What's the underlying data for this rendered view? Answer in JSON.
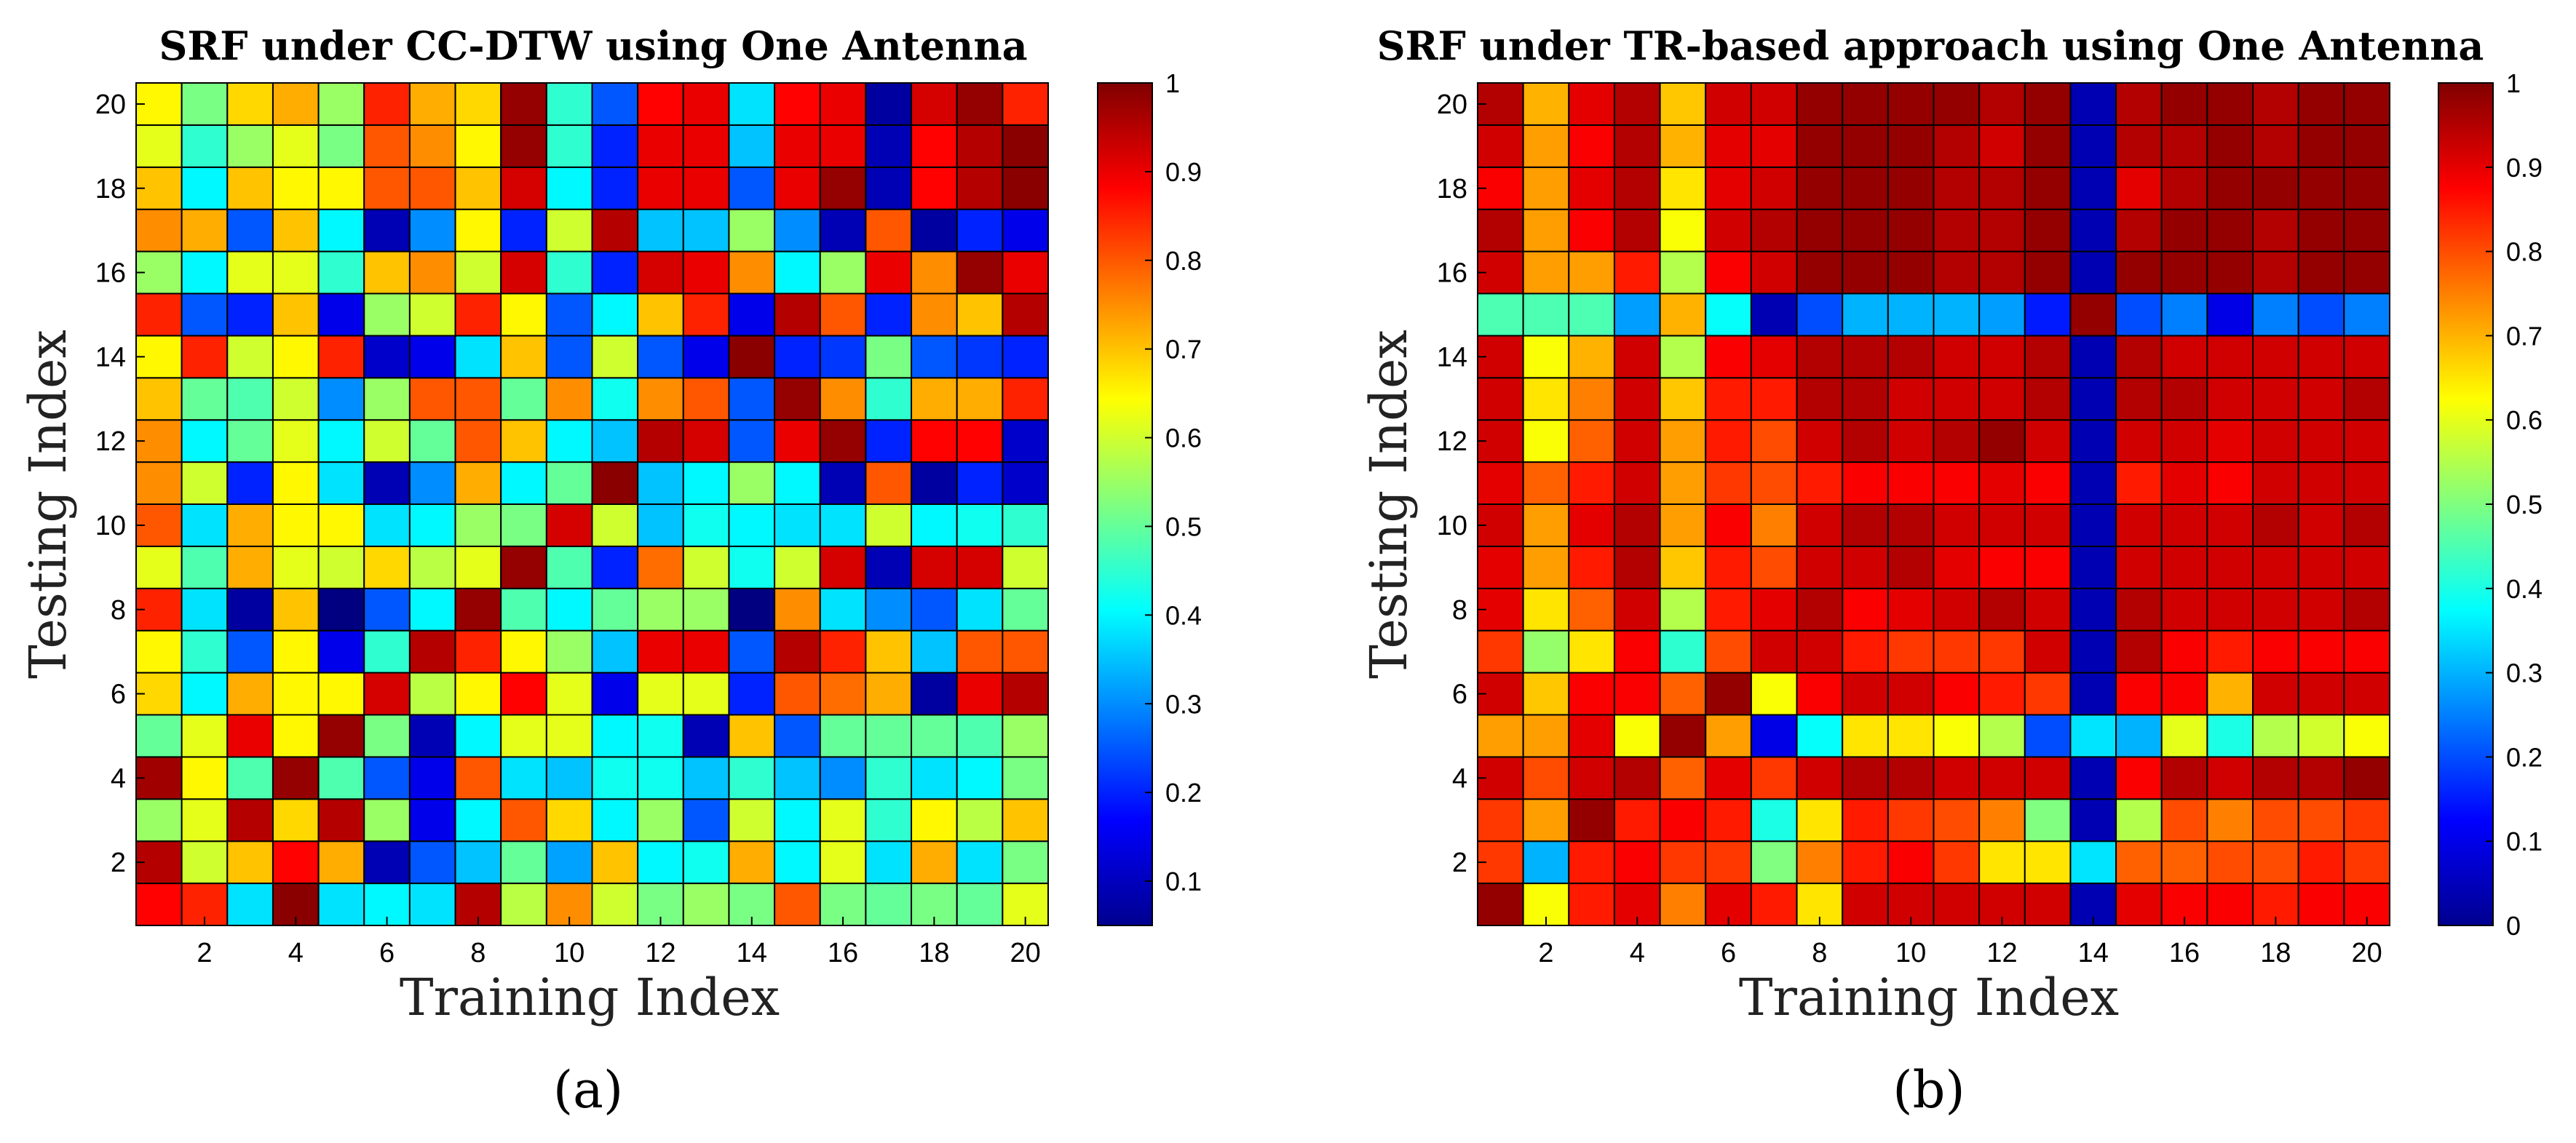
{
  "chart_data": [
    {
      "type": "heatmap",
      "panel_label": "(a)",
      "title": "SRF under CC-DTW using One Antenna",
      "xlabel": "Training Index",
      "ylabel": "Testing Index",
      "x_categories": [
        1,
        2,
        3,
        4,
        5,
        6,
        7,
        8,
        9,
        10,
        11,
        12,
        13,
        14,
        15,
        16,
        17,
        18,
        19,
        20
      ],
      "y_categories": [
        1,
        2,
        3,
        4,
        5,
        6,
        7,
        8,
        9,
        10,
        11,
        12,
        13,
        14,
        15,
        16,
        17,
        18,
        19,
        20
      ],
      "x_ticks": [
        "2",
        "4",
        "6",
        "8",
        "10",
        "12",
        "14",
        "16",
        "18",
        "20"
      ],
      "y_ticks": [
        "2",
        "4",
        "6",
        "8",
        "10",
        "12",
        "14",
        "16",
        "18",
        "20"
      ],
      "colorbar": {
        "min": 0.05,
        "max": 1.0,
        "ticks": [
          "0.1",
          "0.2",
          "0.3",
          "0.4",
          "0.5",
          "0.6",
          "0.7",
          "0.8",
          "0.9",
          "1"
        ]
      },
      "values_rows_bottom_to_top": [
        [
          0.88,
          0.85,
          0.38,
          0.99,
          0.38,
          0.4,
          0.38,
          0.95,
          0.58,
          0.75,
          0.6,
          0.52,
          0.55,
          0.52,
          0.8,
          0.52,
          0.5,
          0.52,
          0.5,
          0.62
        ],
        [
          0.95,
          0.6,
          0.7,
          0.88,
          0.72,
          0.1,
          0.25,
          0.35,
          0.5,
          0.32,
          0.7,
          0.4,
          0.42,
          0.72,
          0.4,
          0.62,
          0.38,
          0.72,
          0.38,
          0.52
        ],
        [
          0.55,
          0.62,
          0.95,
          0.68,
          0.95,
          0.55,
          0.15,
          0.4,
          0.8,
          0.68,
          0.4,
          0.55,
          0.25,
          0.6,
          0.4,
          0.62,
          0.45,
          0.65,
          0.58,
          0.7
        ],
        [
          0.97,
          0.65,
          0.48,
          0.98,
          0.48,
          0.25,
          0.15,
          0.8,
          0.38,
          0.35,
          0.42,
          0.42,
          0.35,
          0.45,
          0.35,
          0.3,
          0.45,
          0.38,
          0.4,
          0.52
        ],
        [
          0.5,
          0.62,
          0.9,
          0.65,
          0.98,
          0.52,
          0.1,
          0.4,
          0.62,
          0.62,
          0.4,
          0.42,
          0.1,
          0.7,
          0.25,
          0.5,
          0.5,
          0.5,
          0.48,
          0.55
        ],
        [
          0.68,
          0.4,
          0.72,
          0.65,
          0.65,
          0.92,
          0.58,
          0.65,
          0.88,
          0.62,
          0.15,
          0.62,
          0.62,
          0.2,
          0.8,
          0.78,
          0.72,
          0.08,
          0.9,
          0.95
        ],
        [
          0.65,
          0.45,
          0.25,
          0.65,
          0.15,
          0.45,
          0.95,
          0.85,
          0.65,
          0.55,
          0.35,
          0.9,
          0.9,
          0.25,
          0.95,
          0.85,
          0.7,
          0.35,
          0.8,
          0.8
        ],
        [
          0.85,
          0.38,
          0.08,
          0.7,
          0.05,
          0.25,
          0.4,
          0.98,
          0.48,
          0.4,
          0.5,
          0.55,
          0.55,
          0.05,
          0.75,
          0.38,
          0.3,
          0.25,
          0.38,
          0.5
        ],
        [
          0.62,
          0.48,
          0.72,
          0.62,
          0.6,
          0.68,
          0.58,
          0.62,
          0.98,
          0.48,
          0.2,
          0.78,
          0.6,
          0.42,
          0.6,
          0.92,
          0.1,
          0.92,
          0.92,
          0.6
        ],
        [
          0.8,
          0.38,
          0.72,
          0.65,
          0.65,
          0.38,
          0.4,
          0.55,
          0.52,
          0.92,
          0.6,
          0.35,
          0.42,
          0.4,
          0.38,
          0.38,
          0.6,
          0.4,
          0.42,
          0.45
        ],
        [
          0.75,
          0.6,
          0.2,
          0.65,
          0.38,
          0.1,
          0.3,
          0.72,
          0.4,
          0.5,
          0.99,
          0.35,
          0.4,
          0.55,
          0.4,
          0.1,
          0.8,
          0.08,
          0.2,
          0.12
        ],
        [
          0.75,
          0.4,
          0.5,
          0.62,
          0.4,
          0.6,
          0.5,
          0.8,
          0.7,
          0.4,
          0.35,
          0.95,
          0.92,
          0.25,
          0.9,
          0.98,
          0.2,
          0.88,
          0.88,
          0.12
        ],
        [
          0.7,
          0.5,
          0.48,
          0.6,
          0.3,
          0.55,
          0.8,
          0.8,
          0.5,
          0.75,
          0.42,
          0.75,
          0.8,
          0.25,
          0.98,
          0.75,
          0.45,
          0.72,
          0.72,
          0.85
        ],
        [
          0.65,
          0.85,
          0.6,
          0.65,
          0.85,
          0.12,
          0.15,
          0.38,
          0.7,
          0.25,
          0.6,
          0.25,
          0.15,
          0.99,
          0.2,
          0.22,
          0.52,
          0.25,
          0.22,
          0.2
        ],
        [
          0.85,
          0.25,
          0.2,
          0.7,
          0.15,
          0.55,
          0.6,
          0.85,
          0.65,
          0.25,
          0.4,
          0.7,
          0.85,
          0.15,
          0.95,
          0.8,
          0.2,
          0.75,
          0.7,
          0.95
        ],
        [
          0.55,
          0.4,
          0.62,
          0.62,
          0.45,
          0.7,
          0.75,
          0.6,
          0.92,
          0.45,
          0.2,
          0.92,
          0.9,
          0.75,
          0.4,
          0.55,
          0.9,
          0.75,
          0.98,
          0.9
        ],
        [
          0.75,
          0.72,
          0.25,
          0.7,
          0.4,
          0.1,
          0.3,
          0.65,
          0.2,
          0.6,
          0.95,
          0.35,
          0.35,
          0.55,
          0.3,
          0.1,
          0.8,
          0.08,
          0.2,
          0.15
        ],
        [
          0.7,
          0.4,
          0.7,
          0.65,
          0.65,
          0.8,
          0.8,
          0.7,
          0.92,
          0.4,
          0.2,
          0.9,
          0.9,
          0.25,
          0.9,
          0.98,
          0.1,
          0.88,
          0.95,
          0.99
        ],
        [
          0.62,
          0.45,
          0.55,
          0.62,
          0.52,
          0.8,
          0.75,
          0.65,
          0.98,
          0.45,
          0.2,
          0.9,
          0.9,
          0.35,
          0.9,
          0.9,
          0.1,
          0.88,
          0.95,
          0.99
        ],
        [
          0.65,
          0.52,
          0.68,
          0.72,
          0.55,
          0.85,
          0.72,
          0.68,
          0.98,
          0.45,
          0.25,
          0.88,
          0.9,
          0.38,
          0.88,
          0.9,
          0.08,
          0.92,
          0.98,
          0.85
        ]
      ]
    },
    {
      "type": "heatmap",
      "panel_label": "(b)",
      "title": "SRF under TR-based approach using One Antenna",
      "xlabel": "Training Index",
      "ylabel": "Testing Index",
      "x_categories": [
        1,
        2,
        3,
        4,
        5,
        6,
        7,
        8,
        9,
        10,
        11,
        12,
        13,
        14,
        15,
        16,
        17,
        18,
        19,
        20
      ],
      "y_categories": [
        1,
        2,
        3,
        4,
        5,
        6,
        7,
        8,
        9,
        10,
        11,
        12,
        13,
        14,
        15,
        16,
        17,
        18,
        19,
        20
      ],
      "x_ticks": [
        "2",
        "4",
        "6",
        "8",
        "10",
        "12",
        "14",
        "16",
        "18",
        "20"
      ],
      "y_ticks": [
        "2",
        "4",
        "6",
        "8",
        "10",
        "12",
        "14",
        "16",
        "18",
        "20"
      ],
      "colorbar": {
        "min": 0,
        "max": 1.0,
        "ticks": [
          "0",
          "0.1",
          "0.2",
          "0.3",
          "0.4",
          "0.5",
          "0.6",
          "0.7",
          "0.8",
          "0.9",
          "1"
        ]
      },
      "values_rows_bottom_to_top": [
        [
          0.98,
          0.62,
          0.85,
          0.9,
          0.75,
          0.9,
          0.85,
          0.65,
          0.92,
          0.92,
          0.92,
          0.92,
          0.92,
          0.05,
          0.9,
          0.88,
          0.88,
          0.85,
          0.88,
          0.88
        ],
        [
          0.82,
          0.3,
          0.85,
          0.88,
          0.82,
          0.82,
          0.5,
          0.75,
          0.85,
          0.88,
          0.82,
          0.65,
          0.65,
          0.35,
          0.78,
          0.78,
          0.8,
          0.8,
          0.85,
          0.82
        ],
        [
          0.82,
          0.72,
          0.98,
          0.85,
          0.88,
          0.85,
          0.4,
          0.65,
          0.85,
          0.82,
          0.8,
          0.75,
          0.5,
          0.05,
          0.55,
          0.8,
          0.75,
          0.8,
          0.8,
          0.82
        ],
        [
          0.92,
          0.8,
          0.92,
          0.95,
          0.78,
          0.9,
          0.82,
          0.92,
          0.95,
          0.95,
          0.92,
          0.92,
          0.92,
          0.05,
          0.88,
          0.95,
          0.92,
          0.95,
          0.95,
          0.98
        ],
        [
          0.72,
          0.72,
          0.9,
          0.62,
          0.98,
          0.72,
          0.1,
          0.38,
          0.65,
          0.65,
          0.62,
          0.55,
          0.2,
          0.35,
          0.3,
          0.6,
          0.4,
          0.55,
          0.58,
          0.62
        ],
        [
          0.92,
          0.68,
          0.88,
          0.88,
          0.78,
          0.98,
          0.62,
          0.88,
          0.92,
          0.92,
          0.88,
          0.85,
          0.82,
          0.05,
          0.88,
          0.88,
          0.7,
          0.92,
          0.92,
          0.92
        ],
        [
          0.82,
          0.52,
          0.65,
          0.88,
          0.42,
          0.8,
          0.92,
          0.92,
          0.85,
          0.82,
          0.82,
          0.82,
          0.92,
          0.05,
          0.95,
          0.88,
          0.85,
          0.88,
          0.88,
          0.88
        ],
        [
          0.9,
          0.65,
          0.78,
          0.92,
          0.55,
          0.85,
          0.9,
          0.95,
          0.88,
          0.9,
          0.92,
          0.95,
          0.92,
          0.05,
          0.95,
          0.92,
          0.92,
          0.92,
          0.92,
          0.95
        ],
        [
          0.9,
          0.72,
          0.85,
          0.95,
          0.68,
          0.85,
          0.8,
          0.92,
          0.92,
          0.95,
          0.9,
          0.88,
          0.88,
          0.05,
          0.92,
          0.92,
          0.92,
          0.92,
          0.92,
          0.92
        ],
        [
          0.92,
          0.72,
          0.9,
          0.95,
          0.72,
          0.88,
          0.75,
          0.92,
          0.95,
          0.95,
          0.92,
          0.92,
          0.92,
          0.05,
          0.92,
          0.92,
          0.92,
          0.95,
          0.92,
          0.95
        ],
        [
          0.9,
          0.78,
          0.85,
          0.92,
          0.72,
          0.82,
          0.8,
          0.85,
          0.88,
          0.88,
          0.88,
          0.9,
          0.88,
          0.05,
          0.85,
          0.9,
          0.88,
          0.92,
          0.92,
          0.92
        ],
        [
          0.92,
          0.62,
          0.78,
          0.92,
          0.72,
          0.85,
          0.8,
          0.92,
          0.95,
          0.92,
          0.95,
          0.98,
          0.92,
          0.05,
          0.92,
          0.92,
          0.9,
          0.92,
          0.92,
          0.92
        ],
        [
          0.92,
          0.65,
          0.75,
          0.92,
          0.68,
          0.85,
          0.85,
          0.95,
          0.95,
          0.92,
          0.92,
          0.92,
          0.95,
          0.05,
          0.95,
          0.95,
          0.92,
          0.92,
          0.92,
          0.95
        ],
        [
          0.92,
          0.62,
          0.7,
          0.92,
          0.55,
          0.88,
          0.9,
          0.95,
          0.95,
          0.95,
          0.92,
          0.92,
          0.95,
          0.05,
          0.95,
          0.92,
          0.92,
          0.92,
          0.92,
          0.92
        ],
        [
          0.45,
          0.45,
          0.45,
          0.28,
          0.7,
          0.38,
          0.05,
          0.2,
          0.3,
          0.3,
          0.3,
          0.28,
          0.15,
          0.98,
          0.2,
          0.25,
          0.1,
          0.25,
          0.2,
          0.25
        ],
        [
          0.92,
          0.72,
          0.72,
          0.85,
          0.55,
          0.88,
          0.92,
          0.98,
          0.98,
          0.98,
          0.95,
          0.95,
          0.98,
          0.05,
          0.98,
          0.98,
          0.98,
          0.95,
          0.98,
          0.98
        ],
        [
          0.95,
          0.72,
          0.88,
          0.95,
          0.62,
          0.92,
          0.95,
          0.98,
          0.98,
          0.98,
          0.95,
          0.95,
          0.98,
          0.05,
          0.95,
          0.98,
          0.98,
          0.95,
          0.98,
          0.98
        ],
        [
          0.88,
          0.72,
          0.9,
          0.95,
          0.65,
          0.9,
          0.92,
          0.98,
          0.98,
          0.98,
          0.95,
          0.95,
          0.98,
          0.05,
          0.9,
          0.95,
          0.98,
          0.98,
          0.98,
          0.98
        ],
        [
          0.92,
          0.72,
          0.88,
          0.95,
          0.7,
          0.9,
          0.9,
          0.98,
          0.98,
          0.98,
          0.95,
          0.92,
          0.98,
          0.05,
          0.95,
          0.95,
          0.98,
          0.95,
          0.98,
          0.98
        ],
        [
          0.95,
          0.7,
          0.9,
          0.95,
          0.68,
          0.92,
          0.92,
          0.98,
          0.98,
          0.98,
          0.98,
          0.95,
          0.98,
          0.05,
          0.95,
          0.98,
          0.98,
          0.95,
          0.98,
          0.98
        ]
      ]
    }
  ]
}
